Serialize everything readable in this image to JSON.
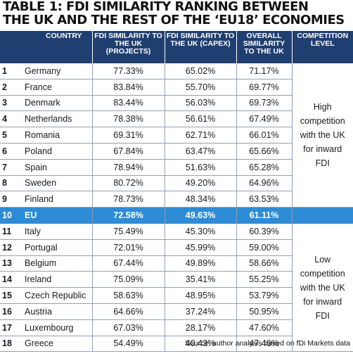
{
  "title_line1": "TABLE 1: FDI SIMILARITY RANKING BETWEEN",
  "title_line2": "THE UK AND THE REST OF THE ‘EU18’ ECONOMIES",
  "headers": {
    "country": "COUNTRY",
    "projects": "FDI SIMILARITY TO THE UK (PROJECTS)",
    "capex": "FDI SIMILARITY TO THE UK (CAPEX)",
    "overall": "OVERALL SIMILARITY TO THE UK",
    "level": "COMPETITION LEVEL"
  },
  "high_level_text": "High competition with the UK for inward FDI",
  "low_level_text": "Low competition with the UK for inward FDI",
  "source": "Source: author analysis based on fDi Markets data",
  "highlight_color": "#2e8bd6",
  "header_color": "#1f3f70",
  "chart_data": {
    "type": "table",
    "columns": [
      "",
      "COUNTRY",
      "FDI SIMILARITY TO THE UK (PROJECTS)",
      "FDI SIMILARITY TO THE UK (CAPEX)",
      "OVERALL SIMILARITY TO THE UK",
      "COMPETITION LEVEL"
    ],
    "rows": [
      {
        "rank": "1",
        "country": "Germany",
        "projects": "77.33%",
        "capex": "65.02%",
        "overall": "71.17%"
      },
      {
        "rank": "2",
        "country": "France",
        "projects": "83.84%",
        "capex": "55.70%",
        "overall": "69.77%"
      },
      {
        "rank": "3",
        "country": "Denmark",
        "projects": "83.44%",
        "capex": "56.03%",
        "overall": "69.73%"
      },
      {
        "rank": "4",
        "country": "Netherlands",
        "projects": "78.38%",
        "capex": "56.61%",
        "overall": "67.49%"
      },
      {
        "rank": "5",
        "country": "Romania",
        "projects": "69.31%",
        "capex": "62.71%",
        "overall": "66.01%"
      },
      {
        "rank": "6",
        "country": "Poland",
        "projects": "67.84%",
        "capex": "63.47%",
        "overall": "65.66%"
      },
      {
        "rank": "7",
        "country": "Spain",
        "projects": "78.94%",
        "capex": "51.63%",
        "overall": "65.28%"
      },
      {
        "rank": "8",
        "country": "Sweden",
        "projects": "80.72%",
        "capex": "49.20%",
        "overall": "64.96%"
      },
      {
        "rank": "9",
        "country": "Finland",
        "projects": "78.73%",
        "capex": "48.34%",
        "overall": "63.53%"
      },
      {
        "rank": "10",
        "country": "EU",
        "projects": "72.58%",
        "capex": "49.63%",
        "overall": "61.11%",
        "highlight": true
      },
      {
        "rank": "11",
        "country": "Italy",
        "projects": "75.49%",
        "capex": "45.30%",
        "overall": "60.39%"
      },
      {
        "rank": "12",
        "country": "Portugal",
        "projects": "72.01%",
        "capex": "45.99%",
        "overall": "59.00%"
      },
      {
        "rank": "13",
        "country": "Belgium",
        "projects": "67.44%",
        "capex": "49.89%",
        "overall": "58.66%"
      },
      {
        "rank": "14",
        "country": "Ireland",
        "projects": "75.09%",
        "capex": "35.41%",
        "overall": "55.25%"
      },
      {
        "rank": "15",
        "country": "Czech Republic",
        "projects": "58.63%",
        "capex": "48.95%",
        "overall": "53.79%"
      },
      {
        "rank": "16",
        "country": "Austria",
        "projects": "64.66%",
        "capex": "37.24%",
        "overall": "50.95%"
      },
      {
        "rank": "17",
        "country": "Luxembourg",
        "projects": "67.03%",
        "capex": "28.17%",
        "overall": "47.60%"
      },
      {
        "rank": "18",
        "country": "Greece",
        "projects": "54.49%",
        "capex": "40.43%",
        "overall": "47.46%"
      }
    ]
  }
}
